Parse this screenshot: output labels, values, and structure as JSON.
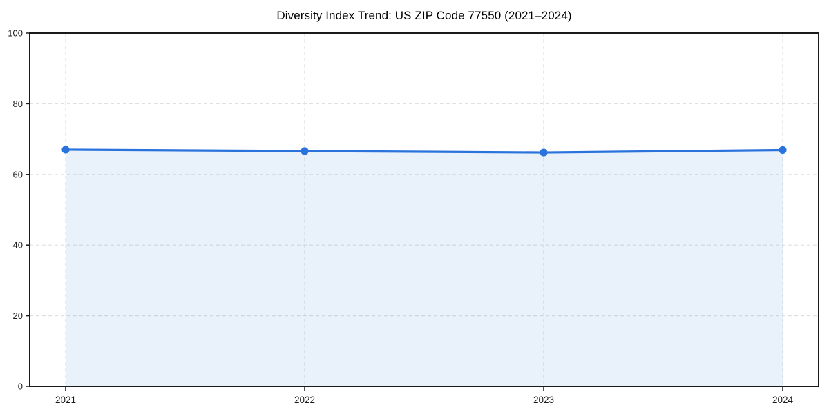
{
  "chart_data": {
    "type": "area",
    "title": "Diversity Index Trend: US ZIP Code 77550 (2021–2024)",
    "x": [
      "2021",
      "2022",
      "2023",
      "2024"
    ],
    "series": [
      {
        "name": "Diversity Index",
        "values": [
          67.0,
          66.6,
          66.2,
          66.9
        ]
      }
    ],
    "xlabel": "",
    "ylabel": "",
    "ylim": [
      0,
      100
    ],
    "yticks": [
      0,
      20,
      40,
      60,
      80,
      100
    ],
    "grid": "dashed-both",
    "legend_position": "none",
    "colors": {
      "line": "#2a72dc",
      "marker": "#2a72dc",
      "fill": "rgba(42,114,220,0.10)",
      "grid": "#e0e0e0",
      "spine": "#1a1a1a",
      "tick_label": "#1a1a1a",
      "title": "#000000",
      "background": "#ffffff"
    }
  }
}
